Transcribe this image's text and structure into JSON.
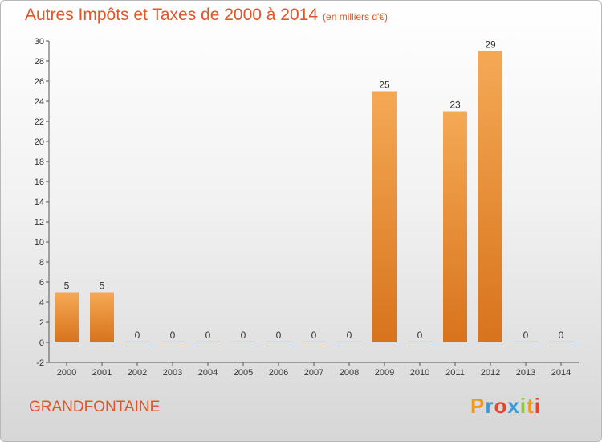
{
  "header": {
    "title": "Autres Impôts et Taxes de 2000 à 2014",
    "unit": "(en milliers d'€)"
  },
  "footer": {
    "commune": "GRANDFONTAINE",
    "brand_letters": [
      "P",
      "r",
      "o",
      "x",
      "i",
      "t",
      "i"
    ],
    "brand_colors": [
      "#f19a1a",
      "#3a9ad9",
      "#e8452c",
      "#3a9ad9",
      "#8cc63f",
      "#f19a1a",
      "#e8452c"
    ]
  },
  "chart_data": {
    "type": "bar",
    "categories": [
      "2000",
      "2001",
      "2002",
      "2003",
      "2004",
      "2005",
      "2006",
      "2007",
      "2008",
      "2009",
      "2010",
      "2011",
      "2012",
      "2013",
      "2014"
    ],
    "values": [
      5,
      5,
      0,
      0,
      0,
      0,
      0,
      0,
      0,
      25,
      0,
      23,
      29,
      0,
      0
    ],
    "title": "Autres Impôts et Taxes de 2000 à 2014",
    "ylabel": "",
    "xlabel": "",
    "ylim": [
      -2,
      30
    ],
    "yticks": [
      -2,
      0,
      2,
      4,
      6,
      8,
      10,
      12,
      14,
      16,
      18,
      20,
      22,
      24,
      26,
      28,
      30
    ],
    "grid": false,
    "colors": {
      "bar_top": "#f5a955",
      "bar_bottom": "#d8731c",
      "title": "#e0552a"
    }
  }
}
